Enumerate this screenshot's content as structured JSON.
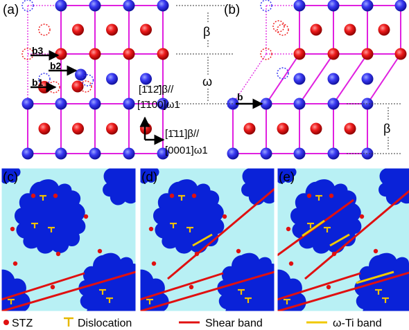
{
  "panel_labels": {
    "a": "(a)",
    "b": "(b)",
    "c": "(c)",
    "d": "(d)",
    "e": "(e)"
  },
  "panel_a": {
    "vectors": {
      "b1": "b1",
      "b2": "b2",
      "b3": "b3"
    },
    "direction1_line1": "[1̄12̄]β//",
    "direction1_line2": "[1̄100]ω1",
    "direction2_line1": "[1̄11]β//",
    "direction2_line2": "[0001]ω1",
    "phase_beta": "β",
    "phase_omega": "ω"
  },
  "panel_b": {
    "vector": "b",
    "phase_beta": "β"
  },
  "legend": {
    "stz": "STZ",
    "dislocation": "Dislocation",
    "shear_band": "Shear band",
    "omega_band": "ω-Ti band"
  },
  "colors": {
    "blue_atom": "#2d2df0",
    "red_atom": "#ee1818",
    "bond": "#e020e0",
    "matrix": "#b8f0f4",
    "grain": "#0a22d8",
    "shear": "#e01010",
    "omega": "#f0c800",
    "stz": "#e01010"
  }
}
